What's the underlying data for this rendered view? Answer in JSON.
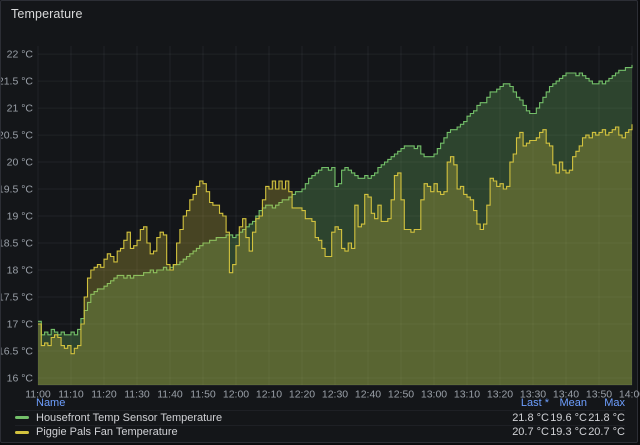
{
  "panel": {
    "title": "Temperature"
  },
  "colors": {
    "panel_background": "#141619",
    "panel_border": "#2c2e35",
    "grid": "rgba(201,209,217,0.07)",
    "axis_text": "#9aa0a8",
    "legend_header_blue": "#6e9fff",
    "series_green": "#73BF69",
    "series_yellow": "#D2C23E"
  },
  "chart_data": {
    "type": "line",
    "step": true,
    "area_fill": true,
    "fill_opacity": 0.27,
    "title": "Temperature",
    "xlabel": "",
    "ylabel": "",
    "y_unit": "°C",
    "x_start": "11:00",
    "x_end": "14:00",
    "minutes": 180,
    "interval_minutes": 1,
    "x_tick_interval_minutes": 10,
    "x_tick_labels": [
      "11:00",
      "11:10",
      "11:20",
      "11:30",
      "11:40",
      "11:50",
      "12:00",
      "12:10",
      "12:20",
      "12:30",
      "12:40",
      "12:50",
      "13:00",
      "13:10",
      "13:20",
      "13:30",
      "13:40",
      "13:50",
      "14:00"
    ],
    "y_tick_values": [
      16,
      16.5,
      17,
      17.5,
      18,
      18.5,
      19,
      19.5,
      20,
      20.5,
      21,
      21.5,
      22
    ],
    "y_tick_labels": [
      "16 °C",
      "16.5 °C",
      "17 °C",
      "17.5 °C",
      "18 °C",
      "18.5 °C",
      "19 °C",
      "19.5 °C",
      "20 °C",
      "20.5 °C",
      "21 °C",
      "21.5 °C",
      "22 °C"
    ],
    "ylim": [
      15.87,
      22.15
    ],
    "grid": true,
    "legend_position": "bottom",
    "series": [
      {
        "name": "Housefront Temp Sensor Temperature",
        "color": "#73BF69",
        "values": [
          17.05,
          16.8,
          16.85,
          16.8,
          16.9,
          16.85,
          16.8,
          16.85,
          16.8,
          16.8,
          16.85,
          16.8,
          16.9,
          17.1,
          17.25,
          17.4,
          17.55,
          17.6,
          17.65,
          17.65,
          17.7,
          17.75,
          17.8,
          17.85,
          17.9,
          17.9,
          17.85,
          17.9,
          17.85,
          17.9,
          17.9,
          17.9,
          17.95,
          17.95,
          18.0,
          17.95,
          18.0,
          18.0,
          18.05,
          18.0,
          18.05,
          18.1,
          18.1,
          18.15,
          18.2,
          18.25,
          18.3,
          18.35,
          18.4,
          18.45,
          18.5,
          18.5,
          18.55,
          18.55,
          18.6,
          18.6,
          18.6,
          18.65,
          18.65,
          18.6,
          18.65,
          18.7,
          18.75,
          18.8,
          18.85,
          18.9,
          19.0,
          19.1,
          19.15,
          19.2,
          19.2,
          19.15,
          19.2,
          19.25,
          19.3,
          19.3,
          19.35,
          19.4,
          19.45,
          19.45,
          19.5,
          19.6,
          19.7,
          19.75,
          19.8,
          19.85,
          19.9,
          19.9,
          19.85,
          19.9,
          19.55,
          19.6,
          19.85,
          19.9,
          19.85,
          19.8,
          19.75,
          19.7,
          19.7,
          19.75,
          19.7,
          19.75,
          19.8,
          19.9,
          19.95,
          20.0,
          20.05,
          20.1,
          20.15,
          20.2,
          20.25,
          20.3,
          20.3,
          20.3,
          20.25,
          20.3,
          20.15,
          20.1,
          20.1,
          20.1,
          20.15,
          20.25,
          20.35,
          20.45,
          20.55,
          20.6,
          20.6,
          20.65,
          20.7,
          20.75,
          20.85,
          20.9,
          20.95,
          21.05,
          21.1,
          21.1,
          21.2,
          21.3,
          21.3,
          21.35,
          21.4,
          21.45,
          21.45,
          21.4,
          21.3,
          21.2,
          21.15,
          21.05,
          20.95,
          20.9,
          20.9,
          21.0,
          21.1,
          21.2,
          21.3,
          21.4,
          21.45,
          21.5,
          21.55,
          21.6,
          21.65,
          21.65,
          21.65,
          21.6,
          21.65,
          21.6,
          21.55,
          21.5,
          21.45,
          21.45,
          21.5,
          21.45,
          21.5,
          21.55,
          21.6,
          21.65,
          21.7,
          21.7,
          21.75,
          21.75,
          21.8
        ]
      },
      {
        "name": "Piggie Pals Fan Temperature",
        "color": "#D2C23E",
        "values": [
          17.0,
          16.6,
          16.65,
          16.6,
          16.75,
          16.8,
          16.75,
          16.6,
          16.55,
          16.6,
          16.45,
          16.55,
          16.6,
          17.0,
          17.5,
          17.85,
          18.0,
          18.05,
          18.1,
          18.05,
          18.2,
          18.3,
          18.25,
          18.15,
          18.35,
          18.4,
          18.55,
          18.7,
          18.4,
          18.45,
          18.55,
          18.75,
          18.8,
          18.5,
          18.3,
          18.35,
          18.6,
          18.7,
          18.65,
          18.1,
          18.0,
          18.1,
          18.5,
          18.75,
          19.0,
          19.1,
          19.3,
          19.4,
          19.55,
          19.65,
          19.6,
          19.45,
          19.25,
          19.2,
          19.2,
          19.05,
          19.0,
          18.7,
          17.95,
          18.1,
          18.45,
          18.8,
          18.95,
          18.6,
          18.35,
          18.7,
          18.95,
          19.0,
          19.3,
          19.55,
          19.5,
          19.65,
          19.5,
          19.65,
          19.5,
          19.65,
          19.45,
          19.15,
          19.15,
          19.15,
          19.1,
          18.95,
          18.95,
          18.9,
          18.6,
          18.55,
          18.4,
          18.25,
          18.25,
          18.7,
          18.8,
          18.75,
          18.4,
          18.35,
          18.5,
          18.4,
          19.2,
          18.8,
          18.85,
          19.4,
          19.35,
          19.05,
          18.95,
          19.2,
          18.9,
          18.9,
          18.95,
          19.3,
          19.75,
          19.8,
          19.3,
          18.75,
          18.75,
          18.7,
          18.75,
          18.75,
          19.3,
          19.6,
          19.55,
          19.45,
          19.6,
          19.45,
          19.4,
          19.45,
          20.0,
          20.1,
          19.95,
          19.5,
          19.55,
          19.4,
          19.35,
          19.3,
          19.1,
          18.85,
          18.75,
          18.85,
          19.2,
          19.7,
          19.65,
          19.55,
          19.6,
          19.5,
          19.55,
          20.0,
          20.15,
          20.45,
          20.55,
          20.3,
          20.35,
          20.4,
          20.4,
          20.45,
          20.55,
          20.6,
          20.35,
          20.3,
          19.95,
          19.8,
          20.0,
          19.85,
          19.8,
          19.85,
          20.1,
          20.2,
          20.3,
          20.45,
          20.5,
          20.45,
          20.55,
          20.5,
          20.55,
          20.6,
          20.5,
          20.55,
          20.6,
          20.65,
          20.5,
          20.45,
          20.55,
          20.6,
          20.7
        ]
      }
    ]
  },
  "legend": {
    "columns": [
      "Name",
      "Last *",
      "Mean",
      "Max"
    ],
    "rows": [
      {
        "name": "Housefront Temp Sensor Temperature",
        "color": "#73BF69",
        "last": "21.8 °C",
        "mean": "19.6 °C",
        "max": "21.8 °C"
      },
      {
        "name": "Piggie Pals Fan Temperature",
        "color": "#D2C23E",
        "last": "20.7 °C",
        "mean": "19.3 °C",
        "max": "20.7 °C"
      }
    ]
  }
}
